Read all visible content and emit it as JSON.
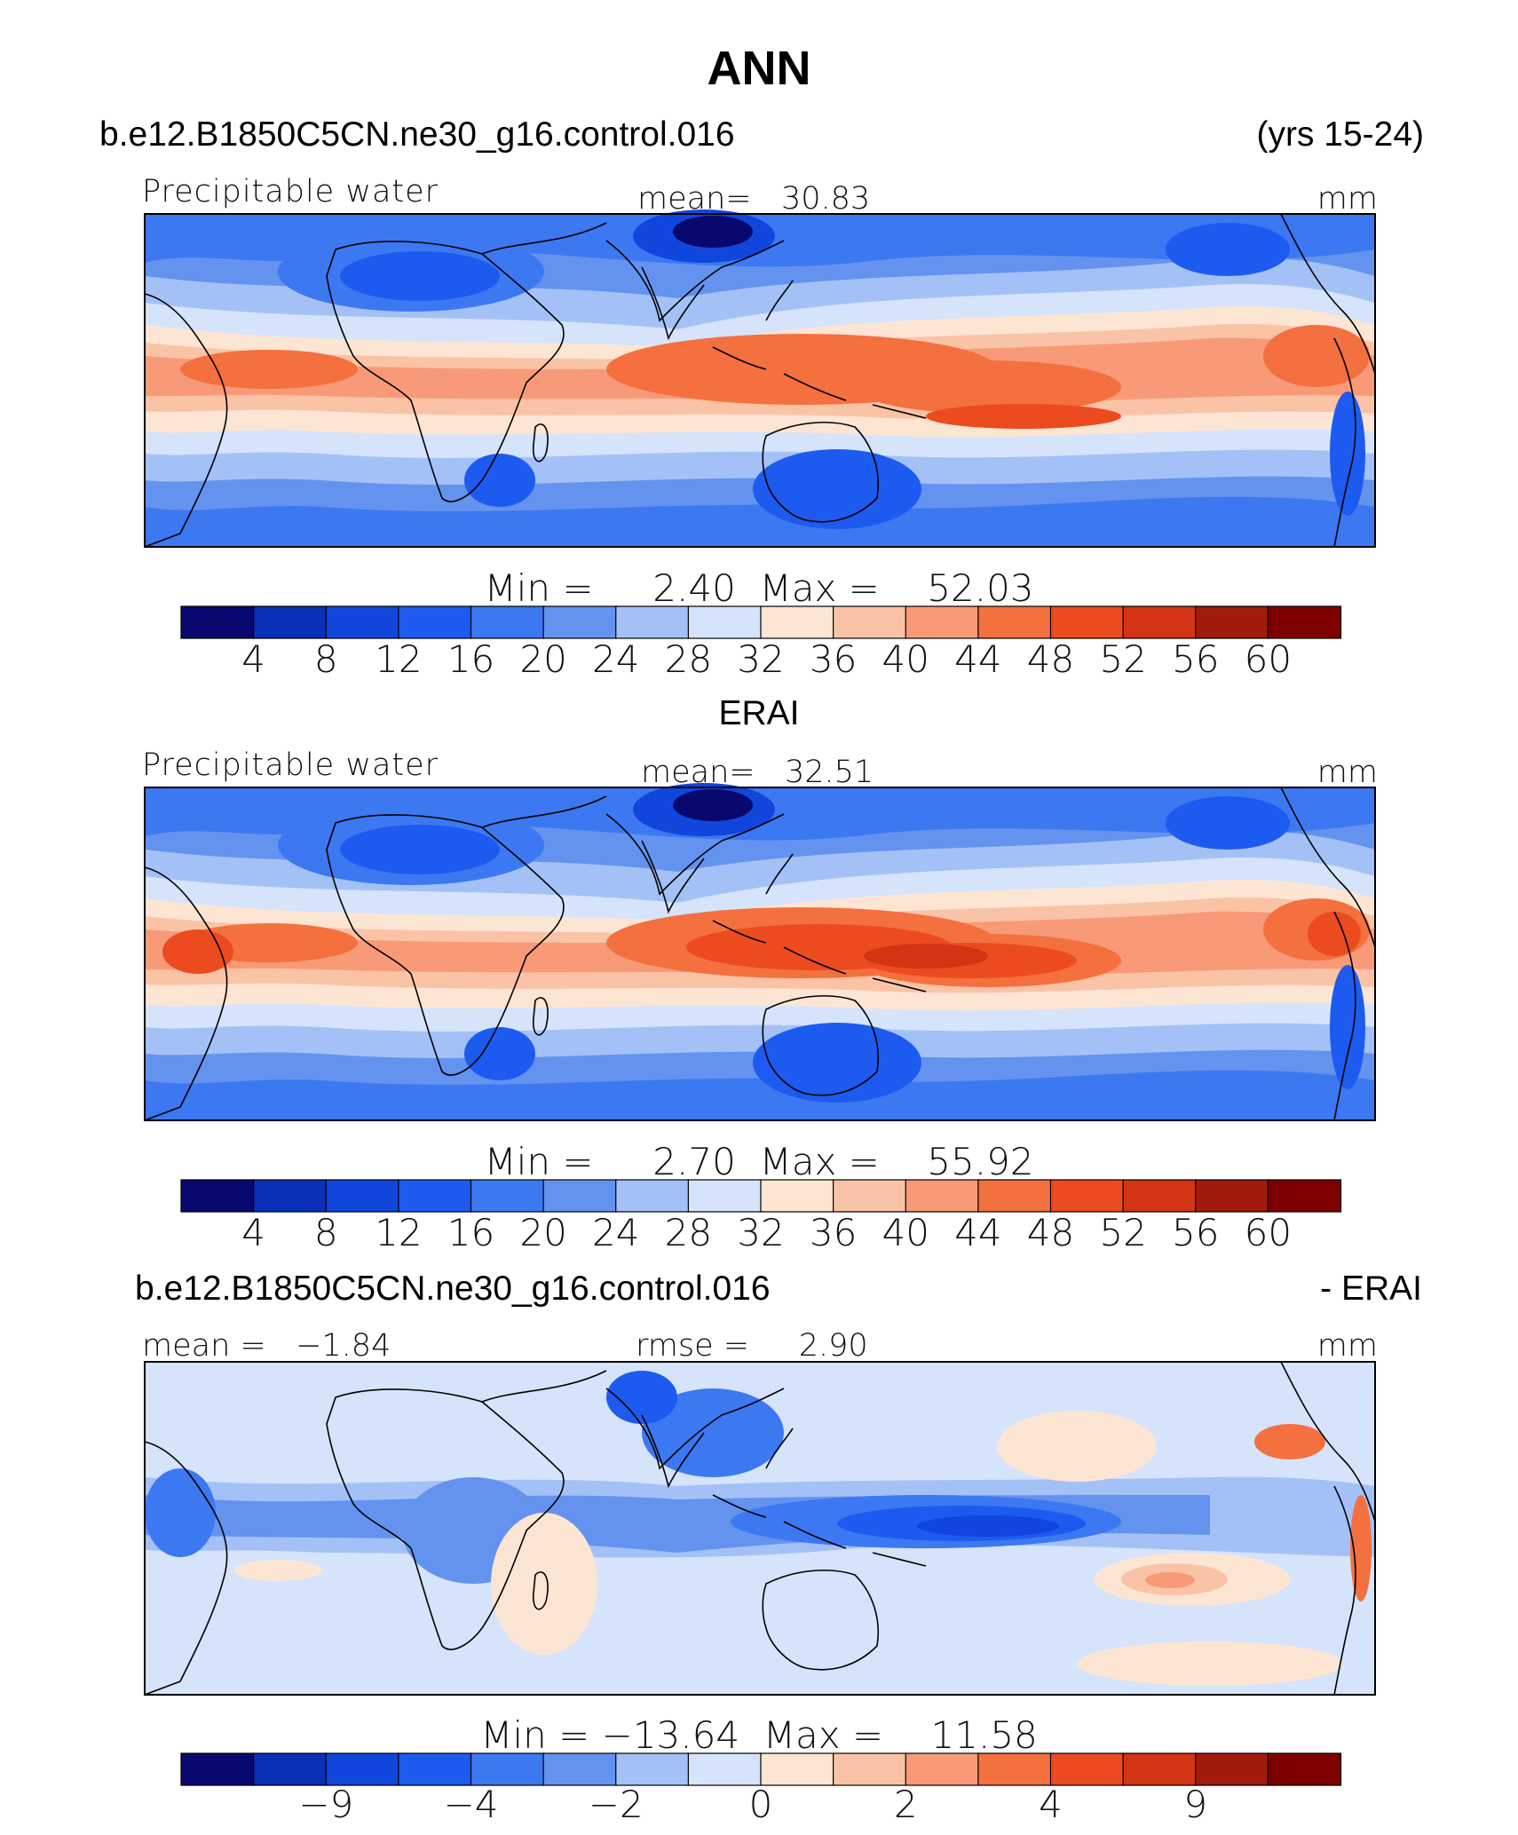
{
  "header": {
    "title": "ANN",
    "case_name": "b.e12.B1850C5CN.ne30_g16.control.016",
    "years": "(yrs 15-24)"
  },
  "obs_title": "ERAI",
  "diff_header": {
    "case_name": "b.e12.B1850C5CN.ne30_g16.control.016",
    "suffix": "- ERAI"
  },
  "colors": {
    "abs_levels": [
      "#08086e",
      "#0a2fb8",
      "#1046dc",
      "#1d5bf0",
      "#3c78f2",
      "#6493ef",
      "#a4c1f7",
      "#d5e4fa",
      "#fde5d4",
      "#fbc3a6",
      "#f89a78",
      "#f4703f",
      "#ec4b1f",
      "#d23414",
      "#a11b0c",
      "#7f0000"
    ],
    "diff_levels": [
      "#08086e",
      "#0a2fb8",
      "#1046dc",
      "#1d5bf0",
      "#3c78f2",
      "#6493ef",
      "#a4c1f7",
      "#d5e4fa",
      "#fde5d4",
      "#fbc3a6",
      "#f89a78",
      "#f4703f",
      "#ec4b1f",
      "#d23414",
      "#a11b0c",
      "#7f0000"
    ]
  },
  "panels": [
    {
      "id": "model",
      "left_label": "Precipitable water",
      "center_label": "mean=   30.83",
      "units": "mm",
      "stats": "Min =     2.40  Max =    52.03",
      "colorbar_ticks": [
        "4",
        "8",
        "12",
        "16",
        "20",
        "24",
        "28",
        "32",
        "36",
        "40",
        "44",
        "48",
        "52",
        "56",
        "60"
      ]
    },
    {
      "id": "obs",
      "left_label": "Precipitable water",
      "center_label": "mean=   32.51",
      "units": "mm",
      "stats": "Min =     2.70  Max =    55.92",
      "colorbar_ticks": [
        "4",
        "8",
        "12",
        "16",
        "20",
        "24",
        "28",
        "32",
        "36",
        "40",
        "44",
        "48",
        "52",
        "56",
        "60"
      ]
    },
    {
      "id": "diff",
      "left_label": "mean =   −1.84",
      "center_label": "rmse =     2.90",
      "units": "mm",
      "stats": "Min = −13.64  Max =    11.58",
      "colorbar_ticks": [
        "−9",
        "−4",
        "−2",
        "0",
        "2",
        "4",
        "9"
      ]
    }
  ],
  "chart_data": [
    {
      "type": "heatmap",
      "title": "Precipitable water",
      "source": "b.e12.B1850C5CN.ne30_g16.control.016",
      "units": "mm",
      "mean": 30.83,
      "min": 2.4,
      "max": 52.03,
      "levels": [
        4,
        8,
        12,
        16,
        20,
        24,
        28,
        32,
        36,
        40,
        44,
        48,
        52,
        56,
        60
      ]
    },
    {
      "type": "heatmap",
      "title": "Precipitable water",
      "source": "ERAI",
      "units": "mm",
      "mean": 32.51,
      "min": 2.7,
      "max": 55.92,
      "levels": [
        4,
        8,
        12,
        16,
        20,
        24,
        28,
        32,
        36,
        40,
        44,
        48,
        52,
        56,
        60
      ]
    },
    {
      "type": "heatmap",
      "title": "b.e12.B1850C5CN.ne30_g16.control.016 - ERAI",
      "units": "mm",
      "mean": -1.84,
      "rmse": 2.9,
      "min": -13.64,
      "max": 11.58,
      "levels": [
        -9,
        -4,
        -2,
        0,
        2,
        4,
        9
      ]
    }
  ]
}
